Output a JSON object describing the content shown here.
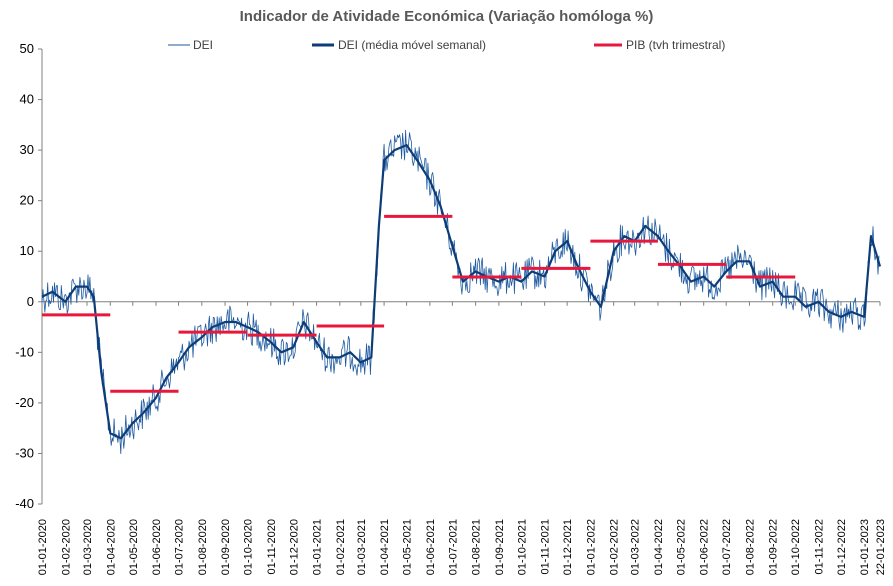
{
  "chart_data": {
    "type": "line",
    "title": "Indicador de Atividade Económica (Variação homóloga %)",
    "ylim": [
      -40,
      50
    ],
    "yticks": [
      50,
      40,
      30,
      20,
      10,
      0,
      -10,
      -20,
      -30,
      -40
    ],
    "xticks": [
      "01-01-2020",
      "01-02-2020",
      "01-03-2020",
      "01-04-2020",
      "01-05-2020",
      "01-06-2020",
      "01-07-2020",
      "01-08-2020",
      "01-09-2020",
      "01-10-2020",
      "01-11-2020",
      "01-12-2020",
      "01-01-2021",
      "01-02-2021",
      "01-03-2021",
      "01-04-2021",
      "01-05-2021",
      "01-06-2021",
      "01-07-2021",
      "01-08-2021",
      "01-09-2021",
      "01-10-2021",
      "01-11-2021",
      "01-12-2021",
      "01-01-2022",
      "01-02-2022",
      "01-03-2022",
      "01-04-2022",
      "01-05-2022",
      "01-06-2022",
      "01-07-2022",
      "01-08-2022",
      "01-09-2022",
      "01-10-2022",
      "01-11-2022",
      "01-12-2022",
      "01-01-2023",
      "22-01-2023"
    ],
    "legend": {
      "placement": "top",
      "entries": [
        "DEI",
        "DEI (média móvel semanal)",
        "PIB (tvh trimestral)"
      ]
    },
    "colors": {
      "dei": "#1f5aa0",
      "dei_ma": "#0d3d78",
      "pib": "#e8173c",
      "axis": "#808080"
    },
    "series": [
      {
        "name": "DEI (média móvel semanal)",
        "x": [
          "01-01-2020",
          "15-01-2020",
          "01-02-2020",
          "15-02-2020",
          "01-03-2020",
          "10-03-2020",
          "20-03-2020",
          "01-04-2020",
          "15-04-2020",
          "01-05-2020",
          "15-05-2020",
          "01-06-2020",
          "15-06-2020",
          "01-07-2020",
          "15-07-2020",
          "01-08-2020",
          "15-08-2020",
          "01-09-2020",
          "15-09-2020",
          "01-10-2020",
          "15-10-2020",
          "01-11-2020",
          "15-11-2020",
          "01-12-2020",
          "15-12-2020",
          "01-01-2021",
          "15-01-2021",
          "01-02-2021",
          "15-02-2021",
          "01-03-2021",
          "15-03-2021",
          "25-03-2021",
          "01-04-2021",
          "15-04-2021",
          "01-05-2021",
          "15-05-2021",
          "01-06-2021",
          "15-06-2021",
          "01-07-2021",
          "15-07-2021",
          "01-08-2021",
          "15-08-2021",
          "01-09-2021",
          "15-09-2021",
          "01-10-2021",
          "15-10-2021",
          "01-11-2021",
          "15-11-2021",
          "01-12-2021",
          "15-12-2021",
          "01-01-2022",
          "15-01-2022",
          "01-02-2022",
          "15-02-2022",
          "01-03-2022",
          "15-03-2022",
          "01-04-2022",
          "15-04-2022",
          "01-05-2022",
          "15-05-2022",
          "01-06-2022",
          "15-06-2022",
          "01-07-2022",
          "15-07-2022",
          "01-08-2022",
          "15-08-2022",
          "01-09-2022",
          "15-09-2022",
          "01-10-2022",
          "15-10-2022",
          "01-11-2022",
          "15-11-2022",
          "01-12-2022",
          "15-12-2022",
          "01-01-2023",
          "10-01-2023",
          "22-01-2023"
        ],
        "values": [
          1,
          2,
          0,
          3,
          3,
          1,
          -14,
          -26,
          -27,
          -24,
          -22,
          -19,
          -15,
          -12,
          -9,
          -7,
          -5,
          -4,
          -4,
          -5,
          -6,
          -8,
          -10,
          -9,
          -4,
          -8,
          -11,
          -11,
          -10,
          -12,
          -11,
          15,
          28,
          30,
          31,
          28,
          24,
          19,
          11,
          4,
          6,
          5,
          4,
          5,
          4,
          6,
          5,
          10,
          12,
          7,
          2,
          -1,
          10,
          13,
          12,
          15,
          13,
          10,
          7,
          4,
          5,
          3,
          6,
          8,
          8,
          3,
          4,
          1,
          1,
          -1,
          0,
          -2,
          -3,
          -2,
          -3,
          13,
          7
        ]
      },
      {
        "name": "PIB (tvh trimestral)",
        "segments": [
          {
            "from": "01-01-2020",
            "to": "01-04-2020",
            "value": -2.6
          },
          {
            "from": "01-04-2020",
            "to": "01-07-2020",
            "value": -17.7
          },
          {
            "from": "01-07-2020",
            "to": "01-10-2020",
            "value": -6.0
          },
          {
            "from": "01-10-2020",
            "to": "01-01-2021",
            "value": -6.6
          },
          {
            "from": "01-01-2021",
            "to": "01-04-2021",
            "value": -4.8
          },
          {
            "from": "01-04-2021",
            "to": "01-07-2021",
            "value": 16.9
          },
          {
            "from": "01-07-2021",
            "to": "01-10-2021",
            "value": 4.9
          },
          {
            "from": "01-10-2021",
            "to": "01-01-2022",
            "value": 6.6
          },
          {
            "from": "01-01-2022",
            "to": "01-04-2022",
            "value": 12.0
          },
          {
            "from": "01-04-2022",
            "to": "01-07-2022",
            "value": 7.4
          },
          {
            "from": "01-07-2022",
            "to": "01-10-2022",
            "value": 4.9
          }
        ]
      }
    ]
  }
}
